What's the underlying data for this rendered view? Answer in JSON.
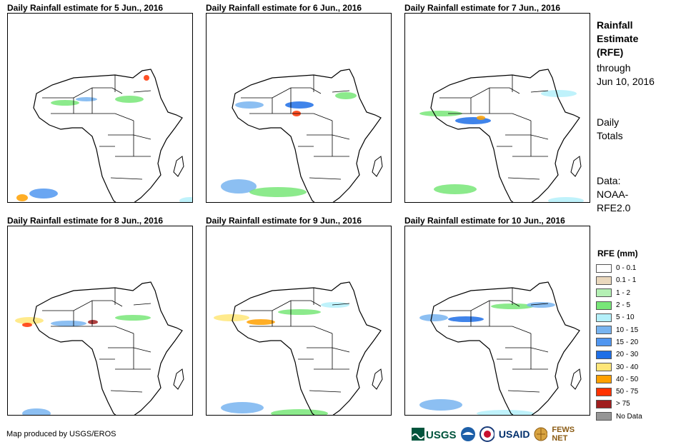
{
  "panels": [
    {
      "title": "Daily Rainfall estimate for 5 Jun., 2016"
    },
    {
      "title": "Daily Rainfall estimate for 6 Jun., 2016"
    },
    {
      "title": "Daily Rainfall estimate for 7 Jun., 2016"
    },
    {
      "title": "Daily Rainfall estimate for 8 Jun., 2016"
    },
    {
      "title": "Daily Rainfall estimate for 9 Jun., 2016"
    },
    {
      "title": "Daily Rainfall estimate for 10 Jun., 2016"
    }
  ],
  "sidebar": {
    "title_line1": "Rainfall",
    "title_line2": "Estimate",
    "title_line3": "(RFE)",
    "through": "through",
    "through_date": "Jun 10, 2016",
    "daily_line1": "Daily",
    "daily_line2": "Totals",
    "data_line1": "Data:",
    "data_line2": "NOAA-",
    "data_line3": "RFE2.0"
  },
  "legend": {
    "title": "RFE (mm)",
    "items": [
      {
        "label": "0 - 0.1",
        "color": "#ffffff"
      },
      {
        "label": "0.1 - 1",
        "color": "#ead8bd"
      },
      {
        "label": "1 - 2",
        "color": "#b4f0b4"
      },
      {
        "label": "2 - 5",
        "color": "#78e678"
      },
      {
        "label": "5 - 10",
        "color": "#b4f0fa"
      },
      {
        "label": "10 - 15",
        "color": "#78b4f0"
      },
      {
        "label": "15 - 20",
        "color": "#5096f0"
      },
      {
        "label": "20 - 30",
        "color": "#1e6ee6"
      },
      {
        "label": "30 - 40",
        "color": "#ffe678"
      },
      {
        "label": "40 - 50",
        "color": "#ffa000"
      },
      {
        "label": "50 - 75",
        "color": "#ff3200"
      },
      {
        "label": "> 75",
        "color": "#a01e1e"
      },
      {
        "label": "No Data",
        "color": "#969696"
      }
    ]
  },
  "footer": {
    "credit": "Map produced by USGS/EROS"
  },
  "logos": {
    "usgs": "USGS",
    "usaid": "USAID",
    "fewsnet": "FEWS NET"
  },
  "icons": [
    "usgs-logo-icon",
    "noaa-logo-icon",
    "usaid-seal-icon",
    "fewsnet-globe-icon"
  ]
}
